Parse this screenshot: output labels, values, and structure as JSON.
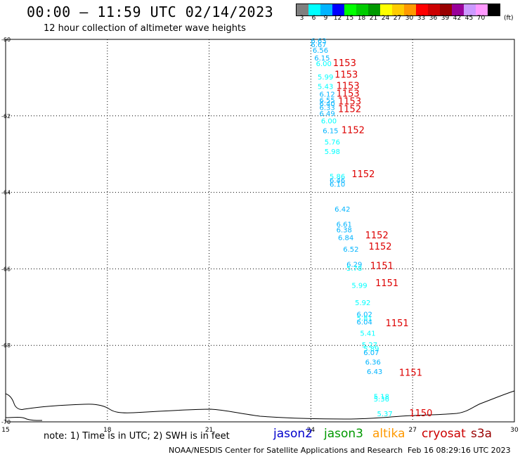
{
  "header": {
    "title": "00:00 – 11:59 UTC 02/14/2023",
    "subtitle": "12 hour collection of altimeter wave heights"
  },
  "legend": {
    "unit": "(ft)",
    "bins": [
      {
        "label": "3",
        "color": "#7f7f7f"
      },
      {
        "label": "6",
        "color": "#00ffff"
      },
      {
        "label": "9",
        "color": "#00b4ff"
      },
      {
        "label": "12",
        "color": "#0000ff"
      },
      {
        "label": "15",
        "color": "#00ff00"
      },
      {
        "label": "18",
        "color": "#00cc00"
      },
      {
        "label": "21",
        "color": "#009900"
      },
      {
        "label": "24",
        "color": "#ffff00"
      },
      {
        "label": "27",
        "color": "#ffcc00"
      },
      {
        "label": "30",
        "color": "#ff9900"
      },
      {
        "label": "33",
        "color": "#ff0000"
      },
      {
        "label": "36",
        "color": "#cc0000"
      },
      {
        "label": "39",
        "color": "#990000"
      },
      {
        "label": "42",
        "color": "#990099"
      },
      {
        "label": "45",
        "color": "#cc99ff"
      },
      {
        "label": "70",
        "color": "#ff99ff"
      },
      {
        "label": "",
        "color": "#000000"
      }
    ]
  },
  "map": {
    "lat_range": [
      -70,
      -60
    ],
    "lon_range": [
      15,
      30
    ],
    "lat_ticks": [
      "-60",
      "-62",
      "-64",
      "-66",
      "-68",
      "-70"
    ],
    "lon_ticks": [
      "15",
      "18",
      "21",
      "24",
      "27",
      "30"
    ],
    "gridlines": "dotted"
  },
  "observations": [
    {
      "lon": 24.0,
      "lat": -60.1,
      "swh": "6.63",
      "color": "#00b4ff"
    },
    {
      "lon": 24.0,
      "lat": -60.2,
      "swh": "6.67",
      "color": "#00b4ff"
    },
    {
      "lon": 24.05,
      "lat": -60.35,
      "swh": "6.56",
      "color": "#00b4ff"
    },
    {
      "lon": 24.1,
      "lat": -60.55,
      "swh": "6.15",
      "color": "#00b4ff"
    },
    {
      "lon": 24.15,
      "lat": -60.7,
      "swh": "6.00",
      "color": "#00ffff"
    },
    {
      "lon": 24.2,
      "lat": -61.05,
      "swh": "5.99",
      "color": "#00ffff"
    },
    {
      "lon": 24.2,
      "lat": -61.3,
      "swh": "5.43",
      "color": "#00ffff"
    },
    {
      "lon": 24.25,
      "lat": -61.5,
      "swh": "6.12",
      "color": "#00b4ff"
    },
    {
      "lon": 24.25,
      "lat": -61.65,
      "swh": "6.55",
      "color": "#00b4ff"
    },
    {
      "lon": 24.25,
      "lat": -61.75,
      "swh": "6.40",
      "color": "#00b4ff"
    },
    {
      "lon": 24.25,
      "lat": -61.85,
      "swh": "6.33",
      "color": "#00b4ff"
    },
    {
      "lon": 24.25,
      "lat": -62.0,
      "swh": "6.49",
      "color": "#00b4ff"
    },
    {
      "lon": 24.3,
      "lat": -62.2,
      "swh": "6.00",
      "color": "#00ffff"
    },
    {
      "lon": 24.35,
      "lat": -62.45,
      "swh": "6.15",
      "color": "#00b4ff"
    },
    {
      "lon": 24.4,
      "lat": -62.75,
      "swh": "5.76",
      "color": "#00ffff"
    },
    {
      "lon": 24.4,
      "lat": -63.0,
      "swh": "5.98",
      "color": "#00ffff"
    },
    {
      "lon": 24.55,
      "lat": -63.65,
      "swh": "5.86",
      "color": "#00ffff"
    },
    {
      "lon": 24.55,
      "lat": -63.75,
      "swh": "6.46",
      "color": "#00b4ff"
    },
    {
      "lon": 24.55,
      "lat": -63.85,
      "swh": "6.10",
      "color": "#00b4ff"
    },
    {
      "lon": 24.7,
      "lat": -64.5,
      "swh": "6.42",
      "color": "#00b4ff"
    },
    {
      "lon": 24.75,
      "lat": -64.9,
      "swh": "6.61",
      "color": "#00b4ff"
    },
    {
      "lon": 24.75,
      "lat": -65.05,
      "swh": "6.38",
      "color": "#00b4ff"
    },
    {
      "lon": 24.8,
      "lat": -65.25,
      "swh": "6.84",
      "color": "#00b4ff"
    },
    {
      "lon": 24.95,
      "lat": -65.55,
      "swh": "6.52",
      "color": "#00b4ff"
    },
    {
      "lon": 25.05,
      "lat": -65.95,
      "swh": "6.29",
      "color": "#00b4ff"
    },
    {
      "lon": 25.05,
      "lat": -66.05,
      "swh": "5.78",
      "color": "#00ffff"
    },
    {
      "lon": 25.2,
      "lat": -66.5,
      "swh": "5.99",
      "color": "#00ffff"
    },
    {
      "lon": 25.3,
      "lat": -66.95,
      "swh": "5.92",
      "color": "#00ffff"
    },
    {
      "lon": 25.35,
      "lat": -67.25,
      "swh": "6.02",
      "color": "#00b4ff"
    },
    {
      "lon": 25.35,
      "lat": -67.35,
      "swh": "5.81",
      "color": "#00ffff"
    },
    {
      "lon": 25.35,
      "lat": -67.45,
      "swh": "6.04",
      "color": "#00b4ff"
    },
    {
      "lon": 25.45,
      "lat": -67.75,
      "swh": "5.41",
      "color": "#00ffff"
    },
    {
      "lon": 25.5,
      "lat": -68.05,
      "swh": "5.27",
      "color": "#00ffff"
    },
    {
      "lon": 25.55,
      "lat": -68.15,
      "swh": "5.89",
      "color": "#00ffff"
    },
    {
      "lon": 25.55,
      "lat": -68.25,
      "swh": "6.07",
      "color": "#00b4ff"
    },
    {
      "lon": 25.6,
      "lat": -68.5,
      "swh": "6.36",
      "color": "#00b4ff"
    },
    {
      "lon": 25.65,
      "lat": -68.75,
      "swh": "6.43",
      "color": "#00b4ff"
    },
    {
      "lon": 25.85,
      "lat": -69.4,
      "swh": "5.18",
      "color": "#00ffff"
    },
    {
      "lon": 25.85,
      "lat": -69.47,
      "swh": "5.36",
      "color": "#00ffff"
    },
    {
      "lon": 25.95,
      "lat": -69.85,
      "swh": "5.37",
      "color": "#00ffff"
    }
  ],
  "time_labels": [
    {
      "lon": 24.65,
      "lat": -60.7,
      "text": "1153"
    },
    {
      "lon": 24.7,
      "lat": -61.0,
      "text": "1153"
    },
    {
      "lon": 24.75,
      "lat": -61.3,
      "text": "1153"
    },
    {
      "lon": 24.75,
      "lat": -61.5,
      "text": "1153"
    },
    {
      "lon": 24.8,
      "lat": -61.7,
      "text": "1153"
    },
    {
      "lon": 24.8,
      "lat": -61.9,
      "text": "1152"
    },
    {
      "lon": 24.9,
      "lat": -62.45,
      "text": "1152"
    },
    {
      "lon": 25.2,
      "lat": -63.6,
      "text": "1152"
    },
    {
      "lon": 25.6,
      "lat": -65.2,
      "text": "1152"
    },
    {
      "lon": 25.7,
      "lat": -65.5,
      "text": "1152"
    },
    {
      "lon": 25.75,
      "lat": -66.0,
      "text": "1151"
    },
    {
      "lon": 25.9,
      "lat": -66.45,
      "text": "1151"
    },
    {
      "lon": 26.2,
      "lat": -67.5,
      "text": "1151"
    },
    {
      "lon": 26.6,
      "lat": -68.8,
      "text": "1151"
    },
    {
      "lon": 26.9,
      "lat": -69.85,
      "text": "1150"
    }
  ],
  "footer": {
    "note": "note: 1) Time is in UTC; 2) SWH is in feet",
    "satellites": [
      {
        "name": "jason2",
        "color": "#0000cc"
      },
      {
        "name": "jason3",
        "color": "#009900"
      },
      {
        "name": "altika",
        "color": "#ff9900"
      },
      {
        "name": "cryosat",
        "color": "#cc0000"
      },
      {
        "name": "s3a",
        "color": "#990000"
      }
    ],
    "credit": "NOAA/NESDIS Center for Satellite Applications and Research",
    "timestamp": "Feb 16 08:29:16 UTC 2023"
  }
}
